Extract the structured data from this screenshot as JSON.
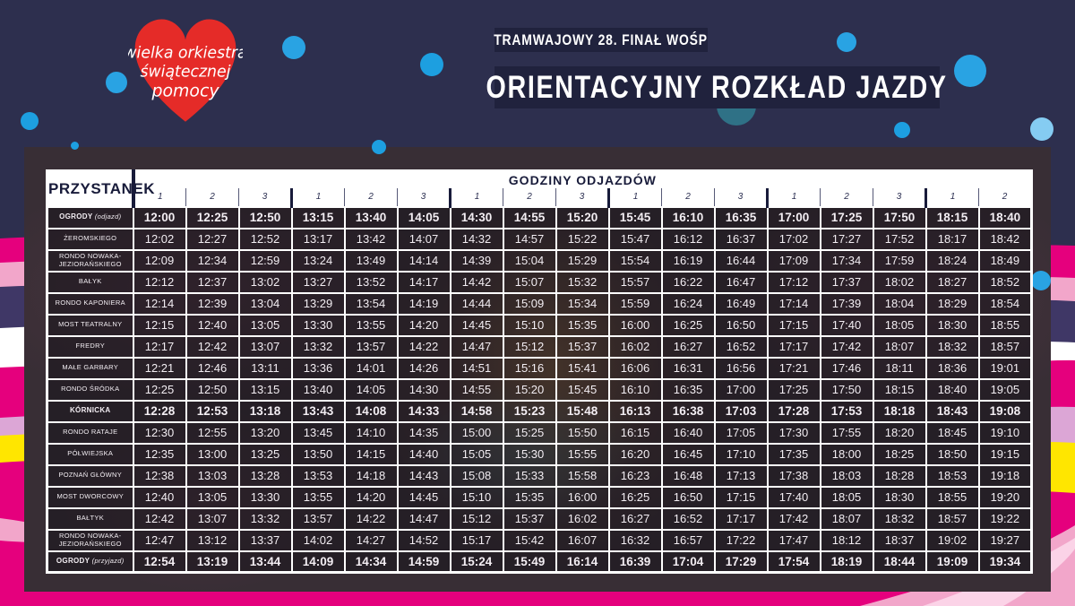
{
  "colors": {
    "background_navy": "#2d2f4e",
    "badge_navy": "#20223d",
    "heart_red": "#e52b28",
    "dot_blue": "#29a3e3",
    "dot_light_blue": "#85ccf2",
    "teal_accent": "#2f7186",
    "magenta": "#e5007d",
    "pink": "#f2a6ca",
    "lavender": "#dca6d6",
    "yellow": "#ffe600",
    "wave_purple": "#3f3766",
    "frame_plum": "#382e35",
    "grid_white": "#ffffff"
  },
  "logo": {
    "line1": "wielka orkiestra",
    "line2": "świątecznej",
    "line3": "pomocy"
  },
  "header": {
    "badge_small": "TRAMWAJOWY 28. FINAŁ WOŚP",
    "badge_large": "ORIENTACYJNY ROZKŁAD JAZDY"
  },
  "table": {
    "stop_header": "PRZYSTANEK",
    "times_header": "GODZINY ODJAZDÓW",
    "course_numbers": [
      "1",
      "2",
      "3",
      "1",
      "2",
      "3",
      "1",
      "2",
      "3",
      "1",
      "2",
      "3",
      "1",
      "2",
      "3",
      "1",
      "2"
    ],
    "rows": [
      {
        "stop": "OGRODY",
        "suffix": "(odjazd)",
        "bold": true,
        "times": [
          "12:00",
          "12:25",
          "12:50",
          "13:15",
          "13:40",
          "14:05",
          "14:30",
          "14:55",
          "15:20",
          "15:45",
          "16:10",
          "16:35",
          "17:00",
          "17:25",
          "17:50",
          "18:15",
          "18:40"
        ]
      },
      {
        "stop": "ŻEROMSKIEGO",
        "suffix": "",
        "bold": false,
        "times": [
          "12:02",
          "12:27",
          "12:52",
          "13:17",
          "13:42",
          "14:07",
          "14:32",
          "14:57",
          "15:22",
          "15:47",
          "16:12",
          "16:37",
          "17:02",
          "17:27",
          "17:52",
          "18:17",
          "18:42"
        ]
      },
      {
        "stop": "RONDO NOWAKA-JEZIORAŃSKIEGO",
        "suffix": "",
        "bold": false,
        "times": [
          "12:09",
          "12:34",
          "12:59",
          "13:24",
          "13:49",
          "14:14",
          "14:39",
          "15:04",
          "15:29",
          "15:54",
          "16:19",
          "16:44",
          "17:09",
          "17:34",
          "17:59",
          "18:24",
          "18:49"
        ]
      },
      {
        "stop": "BAŁYK",
        "suffix": "",
        "bold": false,
        "times": [
          "12:12",
          "12:37",
          "13:02",
          "13:27",
          "13:52",
          "14:17",
          "14:42",
          "15:07",
          "15:32",
          "15:57",
          "16:22",
          "16:47",
          "17:12",
          "17:37",
          "18:02",
          "18:27",
          "18:52"
        ]
      },
      {
        "stop": "RONDO KAPONIERA",
        "suffix": "",
        "bold": false,
        "times": [
          "12:14",
          "12:39",
          "13:04",
          "13:29",
          "13:54",
          "14:19",
          "14:44",
          "15:09",
          "15:34",
          "15:59",
          "16:24",
          "16:49",
          "17:14",
          "17:39",
          "18:04",
          "18:29",
          "18:54"
        ]
      },
      {
        "stop": "MOST TEATRALNY",
        "suffix": "",
        "bold": false,
        "times": [
          "12:15",
          "12:40",
          "13:05",
          "13:30",
          "13:55",
          "14:20",
          "14:45",
          "15:10",
          "15:35",
          "16:00",
          "16:25",
          "16:50",
          "17:15",
          "17:40",
          "18:05",
          "18:30",
          "18:55"
        ]
      },
      {
        "stop": "FREDRY",
        "suffix": "",
        "bold": false,
        "times": [
          "12:17",
          "12:42",
          "13:07",
          "13:32",
          "13:57",
          "14:22",
          "14:47",
          "15:12",
          "15:37",
          "16:02",
          "16:27",
          "16:52",
          "17:17",
          "17:42",
          "18:07",
          "18:32",
          "18:57"
        ]
      },
      {
        "stop": "MAŁE GARBARY",
        "suffix": "",
        "bold": false,
        "times": [
          "12:21",
          "12:46",
          "13:11",
          "13:36",
          "14:01",
          "14:26",
          "14:51",
          "15:16",
          "15:41",
          "16:06",
          "16:31",
          "16:56",
          "17:21",
          "17:46",
          "18:11",
          "18:36",
          "19:01"
        ]
      },
      {
        "stop": "RONDO ŚRÓDKA",
        "suffix": "",
        "bold": false,
        "times": [
          "12:25",
          "12:50",
          "13:15",
          "13:40",
          "14:05",
          "14:30",
          "14:55",
          "15:20",
          "15:45",
          "16:10",
          "16:35",
          "17:00",
          "17:25",
          "17:50",
          "18:15",
          "18:40",
          "19:05"
        ]
      },
      {
        "stop": "KÓRNICKA",
        "suffix": "",
        "bold": true,
        "times": [
          "12:28",
          "12:53",
          "13:18",
          "13:43",
          "14:08",
          "14:33",
          "14:58",
          "15:23",
          "15:48",
          "16:13",
          "16:38",
          "17:03",
          "17:28",
          "17:53",
          "18:18",
          "18:43",
          "19:08"
        ]
      },
      {
        "stop": "RONDO RATAJE",
        "suffix": "",
        "bold": false,
        "times": [
          "12:30",
          "12:55",
          "13:20",
          "13:45",
          "14:10",
          "14:35",
          "15:00",
          "15:25",
          "15:50",
          "16:15",
          "16:40",
          "17:05",
          "17:30",
          "17:55",
          "18:20",
          "18:45",
          "19:10"
        ]
      },
      {
        "stop": "PÓŁWIEJSKA",
        "suffix": "",
        "bold": false,
        "times": [
          "12:35",
          "13:00",
          "13:25",
          "13:50",
          "14:15",
          "14:40",
          "15:05",
          "15:30",
          "15:55",
          "16:20",
          "16:45",
          "17:10",
          "17:35",
          "18:00",
          "18:25",
          "18:50",
          "19:15"
        ]
      },
      {
        "stop": "POZNAŃ GŁÓWNY",
        "suffix": "",
        "bold": false,
        "times": [
          "12:38",
          "13:03",
          "13:28",
          "13:53",
          "14:18",
          "14:43",
          "15:08",
          "15:33",
          "15:58",
          "16:23",
          "16:48",
          "17:13",
          "17:38",
          "18:03",
          "18:28",
          "18:53",
          "19:18"
        ]
      },
      {
        "stop": "MOST DWORCOWY",
        "suffix": "",
        "bold": false,
        "times": [
          "12:40",
          "13:05",
          "13:30",
          "13:55",
          "14:20",
          "14:45",
          "15:10",
          "15:35",
          "16:00",
          "16:25",
          "16:50",
          "17:15",
          "17:40",
          "18:05",
          "18:30",
          "18:55",
          "19:20"
        ]
      },
      {
        "stop": "BAŁTYK",
        "suffix": "",
        "bold": false,
        "times": [
          "12:42",
          "13:07",
          "13:32",
          "13:57",
          "14:22",
          "14:47",
          "15:12",
          "15:37",
          "16:02",
          "16:27",
          "16:52",
          "17:17",
          "17:42",
          "18:07",
          "18:32",
          "18:57",
          "19:22"
        ]
      },
      {
        "stop": "RONDO NOWAKA-JEZIORAŃSKIEGO",
        "suffix": "",
        "bold": false,
        "times": [
          "12:47",
          "13:12",
          "13:37",
          "14:02",
          "14:27",
          "14:52",
          "15:17",
          "15:42",
          "16:07",
          "16:32",
          "16:57",
          "17:22",
          "17:47",
          "18:12",
          "18:37",
          "19:02",
          "19:27"
        ]
      },
      {
        "stop": "OGRODY",
        "suffix": "(przyjazd)",
        "bold": true,
        "times": [
          "12:54",
          "13:19",
          "13:44",
          "14:09",
          "14:34",
          "14:59",
          "15:24",
          "15:49",
          "16:14",
          "16:39",
          "17:04",
          "17:29",
          "17:54",
          "18:19",
          "18:44",
          "19:09",
          "19:34"
        ]
      }
    ]
  }
}
